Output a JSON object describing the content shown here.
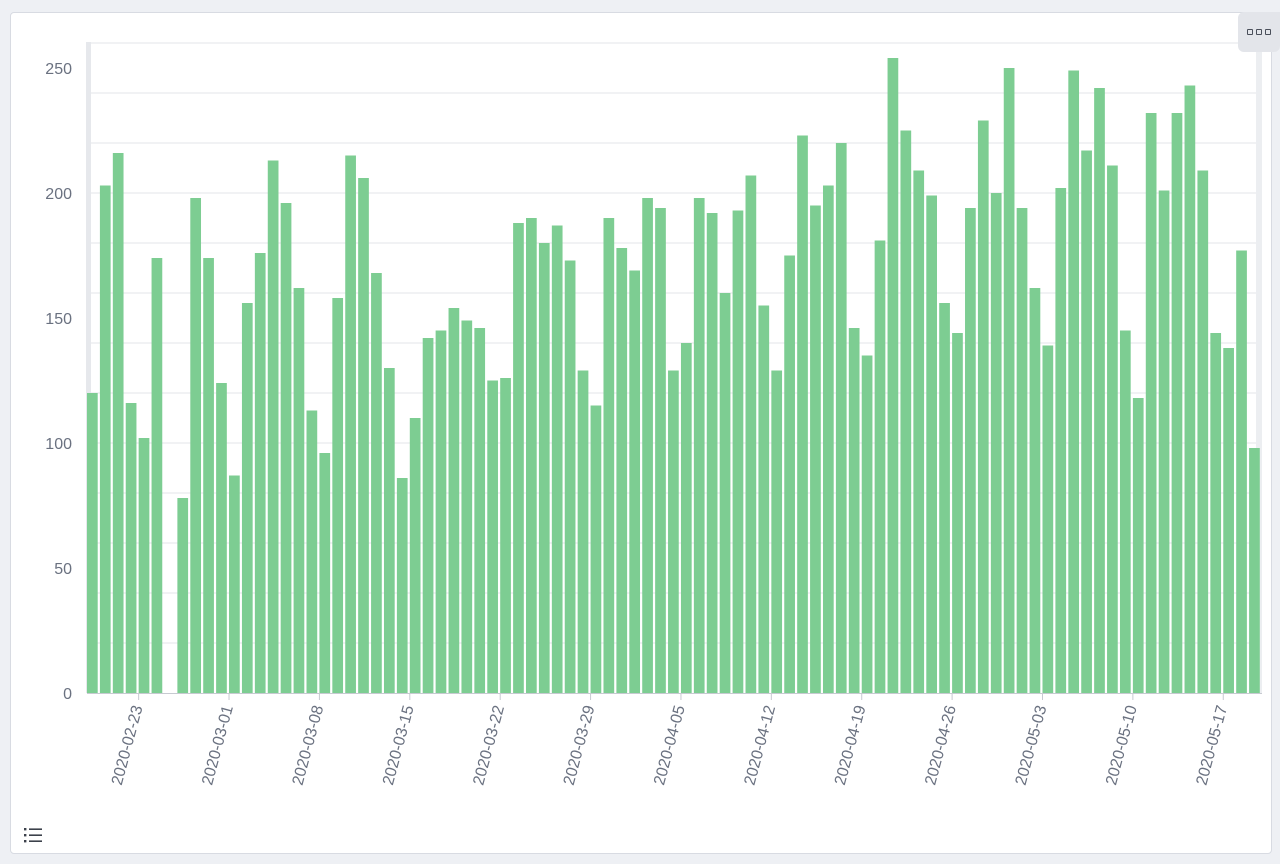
{
  "colors": {
    "bar": "#7dcd92",
    "grid": "#e3e5e9",
    "axis": "#c7cad1",
    "text": "#6a7180"
  },
  "icons": {
    "menu": "more-options-icon",
    "legend": "list-icon"
  },
  "chart_data": {
    "type": "bar",
    "title": "",
    "xlabel": "",
    "ylabel": "",
    "ylim": [
      0,
      260
    ],
    "yticks": [
      0,
      50,
      100,
      150,
      200,
      250
    ],
    "grid": true,
    "x_start": "2020-02-19",
    "xtick_labels": [
      "2020-02-23",
      "2020-03-01",
      "2020-03-08",
      "2020-03-15",
      "2020-03-22",
      "2020-03-29",
      "2020-04-05",
      "2020-04-12",
      "2020-04-19",
      "2020-04-26",
      "2020-05-03",
      "2020-05-10",
      "2020-05-17"
    ],
    "values": [
      120,
      203,
      216,
      116,
      102,
      174,
      0,
      78,
      198,
      174,
      124,
      87,
      156,
      176,
      213,
      196,
      162,
      113,
      96,
      158,
      215,
      206,
      168,
      130,
      86,
      110,
      142,
      145,
      154,
      149,
      146,
      125,
      126,
      188,
      190,
      180,
      187,
      173,
      129,
      115,
      190,
      178,
      169,
      198,
      194,
      129,
      140,
      198,
      192,
      160,
      193,
      207,
      155,
      129,
      175,
      223,
      195,
      203,
      220,
      146,
      135,
      181,
      254,
      225,
      209,
      199,
      156,
      144,
      194,
      229,
      200,
      250,
      194,
      162,
      139,
      202,
      249,
      217,
      242,
      211,
      145,
      118,
      232,
      201,
      232,
      243,
      209,
      144,
      138,
      177,
      98
    ]
  }
}
